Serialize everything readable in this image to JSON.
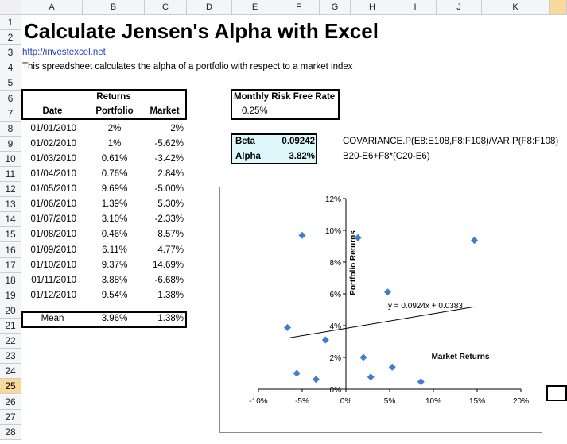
{
  "columns": [
    "A",
    "B",
    "C",
    "D",
    "E",
    "F",
    "G",
    "H",
    "I",
    "J",
    "K"
  ],
  "rows": [
    "1",
    "2",
    "3",
    "4",
    "5",
    "6",
    "7",
    "8",
    "9",
    "10",
    "11",
    "12",
    "13",
    "14",
    "15",
    "16",
    "17",
    "18",
    "19",
    "20",
    "21",
    "22",
    "23",
    "24",
    "25",
    "26",
    "27",
    "28"
  ],
  "title": "Calculate Jensen's Alpha with Excel",
  "link": "http://investexcel.net",
  "description": "This spreadsheet calculates the alpha of a portfolio with respect to a market index",
  "returns_table": {
    "header_group": "Returns",
    "col_date": "Date",
    "col_portfolio": "Portfolio",
    "col_market": "Market",
    "rows": [
      {
        "date": "01/01/2010",
        "portfolio": "2%",
        "market": "2%"
      },
      {
        "date": "01/02/2010",
        "portfolio": "1%",
        "market": "-5.62%"
      },
      {
        "date": "01/03/2010",
        "portfolio": "0.61%",
        "market": "-3.42%"
      },
      {
        "date": "01/04/2010",
        "portfolio": "0.76%",
        "market": "2.84%"
      },
      {
        "date": "01/05/2010",
        "portfolio": "9.69%",
        "market": "-5.00%"
      },
      {
        "date": "01/06/2010",
        "portfolio": "1.39%",
        "market": "5.30%"
      },
      {
        "date": "01/07/2010",
        "portfolio": "3.10%",
        "market": "-2.33%"
      },
      {
        "date": "01/08/2010",
        "portfolio": "0.46%",
        "market": "8.57%"
      },
      {
        "date": "01/09/2010",
        "portfolio": "6.11%",
        "market": "4.77%"
      },
      {
        "date": "01/10/2010",
        "portfolio": "9.37%",
        "market": "14.69%"
      },
      {
        "date": "01/11/2010",
        "portfolio": "3.88%",
        "market": "-6.68%"
      },
      {
        "date": "01/12/2010",
        "portfolio": "9.54%",
        "market": "1.38%"
      }
    ],
    "mean_label": "Mean",
    "mean_portfolio": "3.96%",
    "mean_market": "1.38%"
  },
  "risk_free": {
    "label": "Monthly Risk Free Rate",
    "value": "0.25%"
  },
  "beta": {
    "label": "Beta",
    "value": "0.09242",
    "formula": "COVARIANCE.P(E8:E108,F8:F108)/VAR.P(F8:F108)"
  },
  "alpha": {
    "label": "Alpha",
    "value": "3.82%",
    "formula": "B20-E6+F8*(C20-E6)"
  },
  "colors": {
    "highlight_fill": "#ddf7fb",
    "marker": "#3f7fc9",
    "selected_header": "#f9d99a"
  },
  "chart_data": {
    "type": "scatter",
    "xlabel": "Market Returns",
    "ylabel": "Portfolio Returns",
    "xlim": [
      -0.1,
      0.2
    ],
    "ylim": [
      0,
      0.12
    ],
    "x_ticks": [
      "-10%",
      "-5%",
      "0%",
      "5%",
      "10%",
      "15%",
      "20%"
    ],
    "y_ticks": [
      "0%",
      "2%",
      "4%",
      "6%",
      "8%",
      "10%",
      "12%"
    ],
    "points": [
      {
        "x": -0.0668,
        "y": 0.0388
      },
      {
        "x": -0.0562,
        "y": 0.01
      },
      {
        "x": -0.05,
        "y": 0.0969
      },
      {
        "x": -0.0342,
        "y": 0.0061
      },
      {
        "x": -0.0233,
        "y": 0.031
      },
      {
        "x": 0.0138,
        "y": 0.0954
      },
      {
        "x": 0.02,
        "y": 0.02
      },
      {
        "x": 0.0284,
        "y": 0.0076
      },
      {
        "x": 0.0477,
        "y": 0.0611
      },
      {
        "x": 0.053,
        "y": 0.0139
      },
      {
        "x": 0.0857,
        "y": 0.0046
      },
      {
        "x": 0.1469,
        "y": 0.0937
      }
    ],
    "trendline": {
      "slope": 0.0924,
      "intercept": 0.0383,
      "x_from": -0.0668,
      "x_to": 0.1469,
      "label": "y = 0.0924x + 0.0383"
    },
    "grid": "horizontal",
    "legend": "none"
  }
}
